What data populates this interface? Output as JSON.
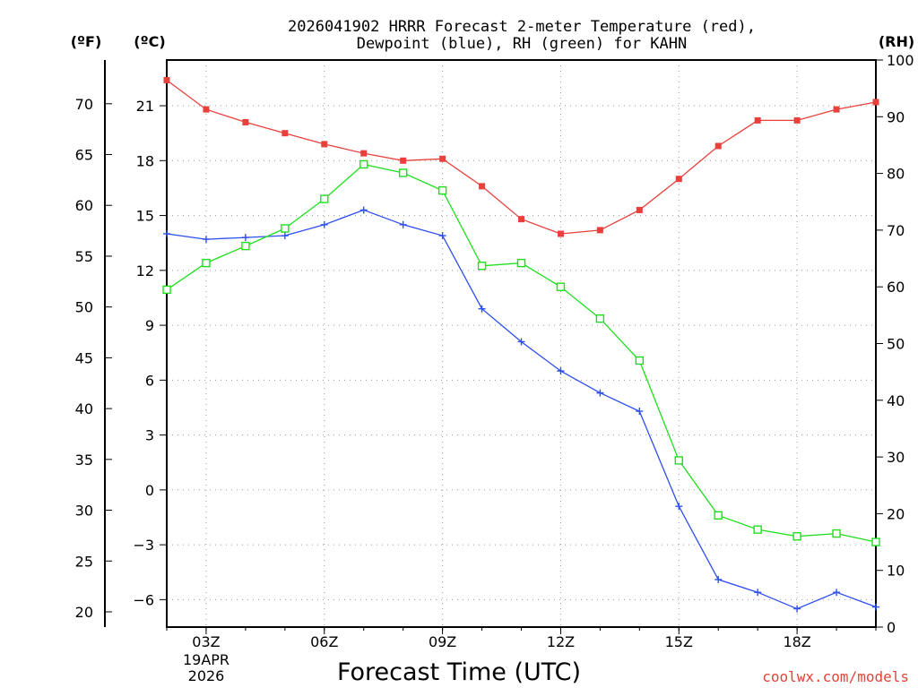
{
  "chart_data": {
    "type": "line",
    "title_line1": "2026041902 HRRR Forecast 2-meter Temperature (red),",
    "title_line2": "Dewpoint (blue), RH (green) for KAHN",
    "xlabel": "Forecast Time (UTC)",
    "credit": "coolwx.com/models",
    "units": {
      "fahrenheit": "(ºF)",
      "celsius": "(ºC)",
      "rh": "(RH)"
    },
    "date_label": {
      "line1": "19APR",
      "line2": "2026"
    },
    "x_hours": [
      2,
      3,
      4,
      5,
      6,
      7,
      8,
      9,
      10,
      11,
      12,
      13,
      14,
      15,
      16,
      17,
      18,
      19,
      20
    ],
    "xlim": [
      2,
      20
    ],
    "x_ticks": [
      {
        "hour": 3,
        "label": "03Z"
      },
      {
        "hour": 6,
        "label": "06Z"
      },
      {
        "hour": 9,
        "label": "09Z"
      },
      {
        "hour": 12,
        "label": "12Z"
      },
      {
        "hour": 15,
        "label": "15Z"
      },
      {
        "hour": 18,
        "label": "18Z"
      }
    ],
    "ylim_celsius": [
      -7.5,
      23.5
    ],
    "ylim_rh": [
      0,
      100
    ],
    "y_ticks_celsius": [
      "-6",
      "-3",
      "0",
      "3",
      "6",
      "9",
      "12",
      "15",
      "18",
      "21"
    ],
    "y_ticks_fahrenheit": [
      "20",
      "25",
      "30",
      "35",
      "40",
      "45",
      "50",
      "55",
      "60",
      "65",
      "70"
    ],
    "y_ticks_rh": [
      "0",
      "10",
      "20",
      "30",
      "40",
      "50",
      "60",
      "70",
      "80",
      "90",
      "100"
    ],
    "series": [
      {
        "name": "Temperature",
        "units": "C",
        "color": "#e8413c",
        "marker": "filled-square",
        "values": [
          22.4,
          20.8,
          20.1,
          19.5,
          18.9,
          18.4,
          18.0,
          18.1,
          16.6,
          14.8,
          14.0,
          14.2,
          15.3,
          17.0,
          18.8,
          20.2,
          20.2,
          20.8,
          21.2
        ]
      },
      {
        "name": "Dewpoint",
        "units": "C",
        "color": "#2e4ef0",
        "marker": "plus",
        "values": [
          14.0,
          13.7,
          13.8,
          13.9,
          14.5,
          15.3,
          14.5,
          13.9,
          9.9,
          8.1,
          6.5,
          5.3,
          4.3,
          -0.9,
          -4.9,
          -5.6,
          -6.5,
          -5.6,
          -6.4
        ]
      },
      {
        "name": "RH",
        "units": "%",
        "color": "#1fe01f",
        "marker": "open-square",
        "values": [
          59.5,
          64.2,
          67.2,
          70.3,
          75.5,
          81.6,
          80.1,
          77.0,
          63.7,
          64.2,
          60.0,
          54.4,
          47.0,
          29.4,
          19.7,
          17.2,
          16.0,
          16.5,
          15.0
        ]
      }
    ]
  }
}
